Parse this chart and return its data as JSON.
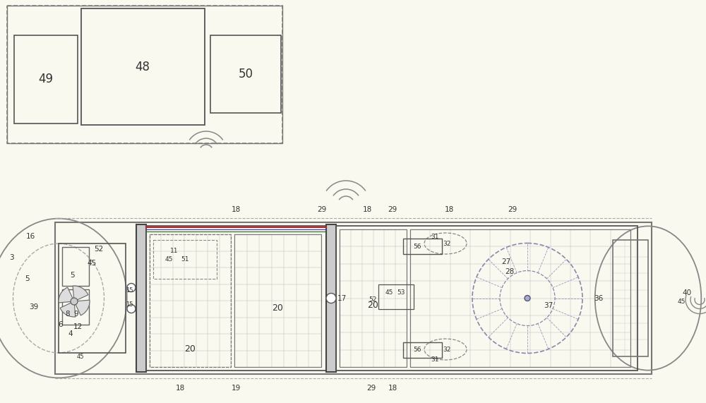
{
  "bg_color": "#faf9f0",
  "lc": "#555555",
  "lc_dark": "#333333",
  "lc_light": "#888888",
  "lc_med": "#666666",
  "gc": "#999999",
  "gc2": "#bbbbbb",
  "blue": "#3333bb",
  "red": "#cc2222",
  "green": "#226622",
  "cyan": "#229999",
  "fs": 7.5
}
